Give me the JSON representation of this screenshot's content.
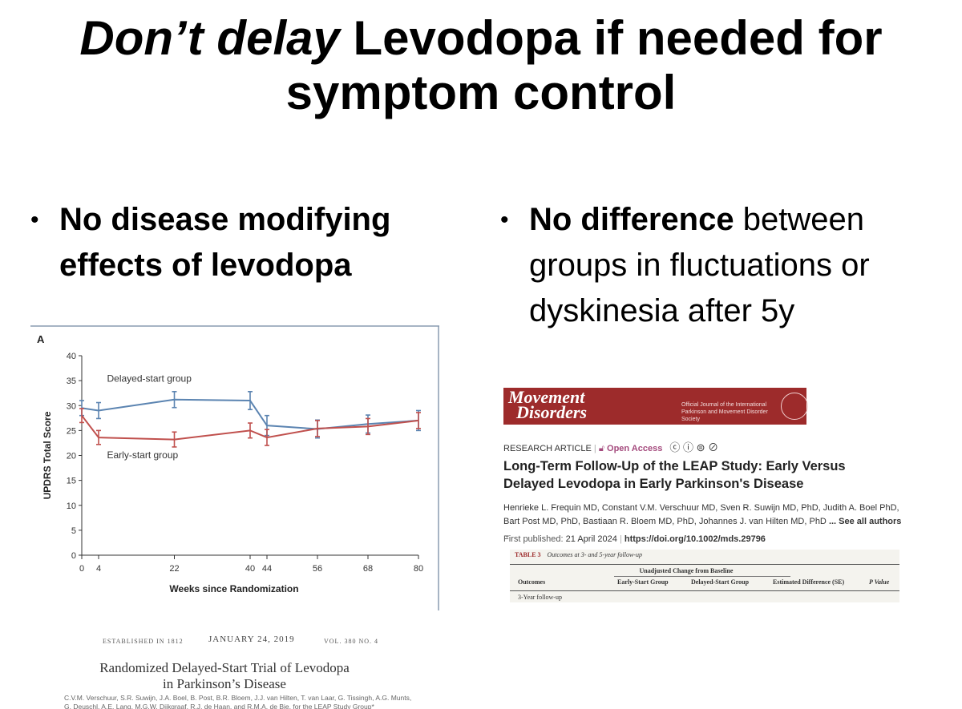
{
  "title": {
    "italic_part": "Don’t delay",
    "rest_line1": " Levodopa if needed for",
    "line2": "symptom control"
  },
  "bullets": {
    "left": {
      "bold": "No disease modifying effects of levodopa",
      "normal": ""
    },
    "right": {
      "bold": "No difference",
      "normal": " between groups in fluctuations or dyskinesia after 5y"
    }
  },
  "chart_data": {
    "type": "line",
    "panel_label": "A",
    "xlabel": "Weeks since Randomization",
    "ylabel": "UPDRS Total Score",
    "xlim": [
      0,
      80
    ],
    "ylim": [
      0,
      40
    ],
    "x_ticks": [
      0,
      4,
      22,
      40,
      44,
      56,
      68,
      80
    ],
    "y_ticks": [
      0,
      5,
      10,
      15,
      20,
      25,
      30,
      35,
      40
    ],
    "series": [
      {
        "name": "Delayed-start group",
        "color": "#5b84b1",
        "x": [
          0,
          4,
          22,
          40,
          44,
          56,
          68,
          80
        ],
        "values": [
          29.5,
          29.0,
          31.2,
          31.0,
          26.0,
          25.3,
          26.3,
          27.0
        ],
        "err": [
          1.5,
          1.6,
          1.6,
          1.8,
          2.0,
          1.8,
          1.8,
          2.0
        ]
      },
      {
        "name": "Early-start group",
        "color": "#c0504d",
        "x": [
          0,
          4,
          22,
          40,
          44,
          56,
          68,
          80
        ],
        "values": [
          28.0,
          23.6,
          23.2,
          25.0,
          23.6,
          25.4,
          25.8,
          27.0
        ],
        "err": [
          1.4,
          1.4,
          1.5,
          1.5,
          1.6,
          1.6,
          1.6,
          1.6
        ]
      }
    ]
  },
  "nejm": {
    "established": "ESTABLISHED IN 1812",
    "date": "JANUARY 24, 2019",
    "volume": "VOL. 380   NO. 4",
    "title_line1": "Randomized Delayed-Start Trial of Levodopa",
    "title_line2": "in Parkinson’s Disease",
    "authors_line1": "C.V.M. Verschuur, S.R. Suwijn, J.A. Boel, B. Post, B.R. Bloem, J.J. van Hilten, T. van Laar, G. Tissingh, A.G. Munts,",
    "authors_line2": "G. Deuschl, A.E. Lang, M.G.W. Dijkgraaf, R.J. de Haan, and R.M.A. de Bie, for the LEAP Study Group*"
  },
  "md": {
    "logo_line1": "Movement",
    "logo_line2": "Disorders",
    "journal_line1": "Official Journal of the International",
    "journal_line2": "Parkinson and Movement Disorder Society",
    "research_label": "RESEARCH ARTICLE",
    "open_access": "Open Access",
    "cc_icons": "ⓒ ⓘ ⊜ ⊘",
    "article_title": "Long-Term Follow-Up of the LEAP Study: Early Versus Delayed Levodopa in Early Parkinson's Disease",
    "authors": "Henrieke L. Frequin MD, Constant V.M. Verschuur MD, Sven R. Suwijn MD, PhD, Judith A. Boel PhD, Bart Post MD, PhD, Bastiaan R. Bloem MD, PhD, Johannes J. van Hilten MD, PhD",
    "see_all": "... See all authors",
    "first_published_label": "First published:",
    "first_published_date": "21 April 2024",
    "doi": "https://doi.org/10.1002/mds.29796",
    "table_label": "TABLE 3",
    "table_caption": "Outcomes at 3- and 5-year follow-up",
    "table_group_header": "Unadjusted Change from Baseline",
    "table_headers": [
      "Outcomes",
      "Early-Start Group",
      "Delayed-Start Group",
      "Estimated Difference (SE)",
      "P Value"
    ],
    "table_first_row": "3-Year follow-up"
  }
}
